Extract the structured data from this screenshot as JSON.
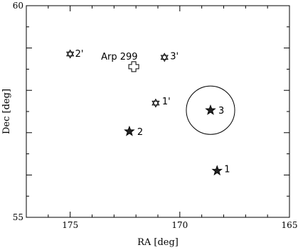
{
  "chart_data": {
    "type": "scatter",
    "xlabel": "RA [deg]",
    "ylabel": "Dec [deg]",
    "xlim": [
      177,
      165
    ],
    "ylim": [
      55,
      60
    ],
    "x_reversed": true,
    "xticks": [
      {
        "value": 175,
        "label": "175"
      },
      {
        "value": 170,
        "label": "170"
      },
      {
        "value": 165,
        "label": "165"
      }
    ],
    "yticks": [
      {
        "value": 60,
        "label": "60"
      },
      {
        "value": 55,
        "label": "55"
      }
    ],
    "points": [
      {
        "id": "arp299",
        "label": "Arp 299",
        "x": 172.1,
        "y": 58.56,
        "marker": "cross"
      },
      {
        "id": "p1",
        "label": "1",
        "x": 168.3,
        "y": 56.1,
        "marker": "filled-star"
      },
      {
        "id": "p2",
        "label": "2",
        "x": 172.3,
        "y": 57.03,
        "marker": "filled-star"
      },
      {
        "id": "p3",
        "label": "3",
        "x": 168.6,
        "y": 57.53,
        "marker": "filled-star"
      },
      {
        "id": "p1p",
        "label": "1'",
        "x": 171.1,
        "y": 57.7,
        "marker": "open-star"
      },
      {
        "id": "p2p",
        "label": "2'",
        "x": 175.0,
        "y": 58.86,
        "marker": "open-star"
      },
      {
        "id": "p3p",
        "label": "3'",
        "x": 170.7,
        "y": 58.78,
        "marker": "open-star"
      }
    ],
    "circle": {
      "center_x": 168.6,
      "center_y": 57.53,
      "radius_deg": 1.2
    }
  }
}
